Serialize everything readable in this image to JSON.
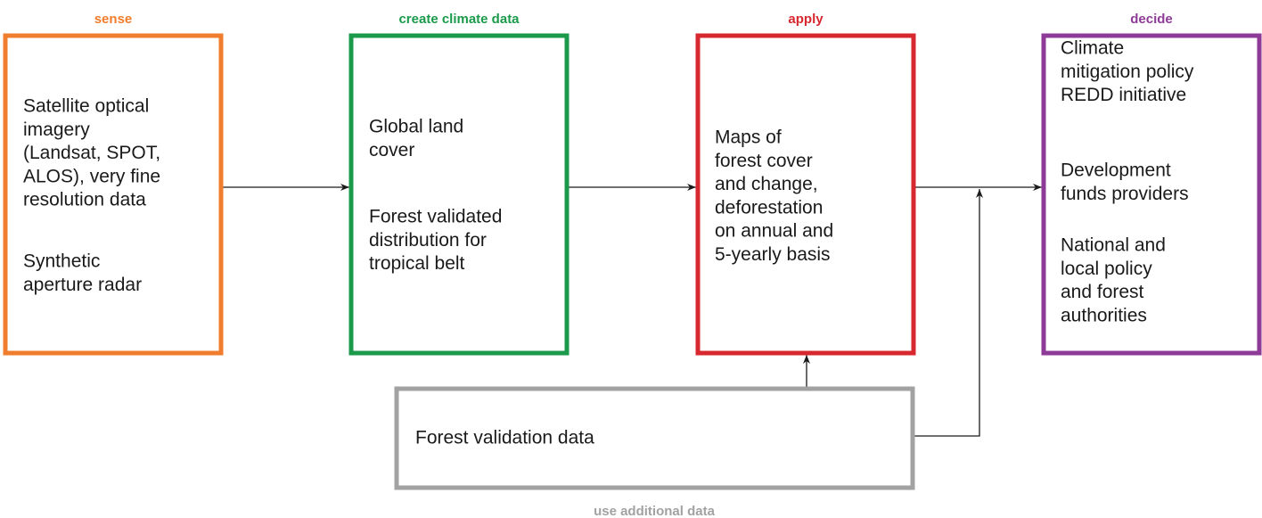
{
  "nodes": [
    {
      "label": "sense",
      "color": "#ef7d2d",
      "paragraphs": [
        [
          "Satellite optical",
          "imagery",
          "(Landsat, SPOT,",
          "ALOS), very fine",
          "resolution data"
        ],
        [
          "Synthetic",
          "aperture radar"
        ]
      ]
    },
    {
      "label": "create climate data",
      "color": "#1b9a4b",
      "paragraphs": [
        [
          "Global land",
          "cover"
        ],
        [
          "Forest validated",
          "distribution for",
          "tropical belt"
        ]
      ]
    },
    {
      "label": "apply",
      "color": "#d7272f",
      "paragraphs": [
        [
          "Maps of",
          "forest cover",
          "and change,",
          "deforestation",
          "on annual and",
          "5-yearly basis"
        ]
      ]
    },
    {
      "label": "decide",
      "color": "#8e3b97",
      "paragraphs": [
        [
          "Climate",
          "mitigation policy",
          "REDD initiative"
        ],
        [
          "Development",
          "funds providers"
        ],
        [
          "National and",
          "local policy",
          "and forest",
          "authorities"
        ]
      ]
    },
    {
      "label": "use additional data",
      "color": "#a2a2a2",
      "paragraphs": [
        [
          "Forest validation data"
        ]
      ]
    }
  ]
}
